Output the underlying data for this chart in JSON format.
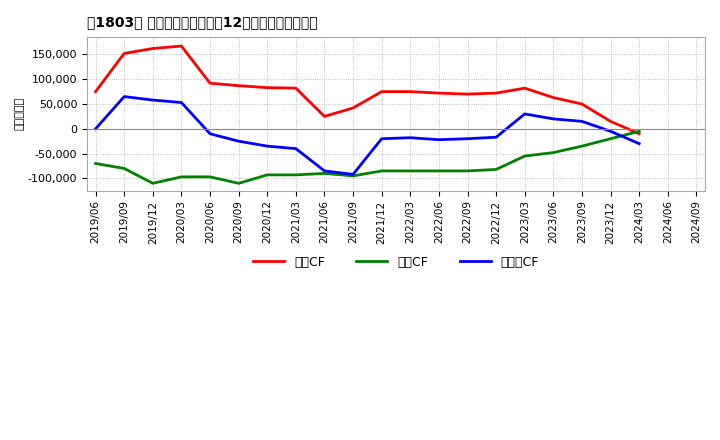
{
  "title": "［1803］ キャッシュフローの12か月移動合計の推移",
  "ylabel": "（百万円）",
  "background_color": "#ffffff",
  "grid_color": "#aaaaaa",
  "ylim": [
    -125000,
    185000
  ],
  "yticks": [
    -100000,
    -50000,
    0,
    50000,
    100000,
    150000
  ],
  "x_labels": [
    "2019/06",
    "2019/09",
    "2019/12",
    "2020/03",
    "2020/06",
    "2020/09",
    "2020/12",
    "2021/03",
    "2021/06",
    "2021/09",
    "2021/12",
    "2022/03",
    "2022/06",
    "2022/09",
    "2022/12",
    "2023/03",
    "2023/06",
    "2023/09",
    "2023/12",
    "2024/03",
    "2024/06",
    "2024/09"
  ],
  "series": {
    "営業CF": {
      "color": "#ff0000",
      "values": [
        75000,
        152000,
        162000,
        167000,
        92000,
        87000,
        83000,
        82000,
        25000,
        42000,
        75000,
        75000,
        72000,
        70000,
        72000,
        82000,
        63000,
        50000,
        15000,
        -10000,
        null,
        null
      ]
    },
    "投資CF": {
      "color": "#008000",
      "values": [
        -70000,
        -80000,
        -110000,
        -97000,
        -97000,
        -110000,
        -93000,
        -93000,
        -90000,
        -95000,
        -85000,
        -85000,
        -85000,
        -85000,
        -82000,
        -55000,
        -48000,
        -35000,
        -20000,
        -5000,
        null,
        null
      ]
    },
    "フリーCF": {
      "color": "#0000ff",
      "values": [
        0,
        65000,
        58000,
        53000,
        -10000,
        -25000,
        -35000,
        -40000,
        -85000,
        -92000,
        -20000,
        -18000,
        -22000,
        -20000,
        -17000,
        30000,
        20000,
        15000,
        -5000,
        -30000,
        null,
        null
      ]
    }
  },
  "legend": [
    "営業CF",
    "投資CF",
    "フリーCF"
  ],
  "line_width": 2.0
}
